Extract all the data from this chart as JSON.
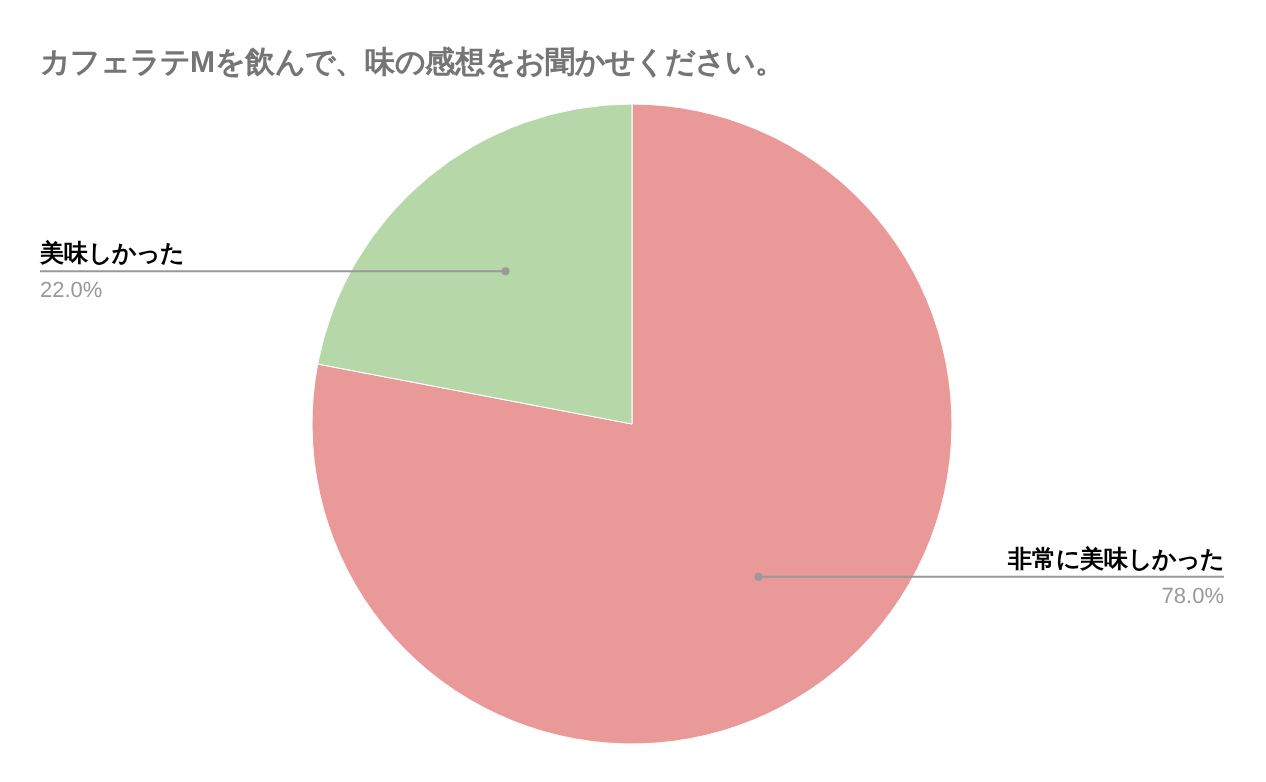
{
  "chart_data": {
    "type": "pie",
    "title": "カフェラテMを飲んで、味の感想をお聞かせください。",
    "categories": [
      "非常に美味しかった",
      "美味しかった"
    ],
    "values": [
      78.0,
      22.0
    ],
    "colors": [
      "#ea9999",
      "#b6d7a8"
    ],
    "value_labels": [
      "78.0%",
      "22.0%"
    ]
  }
}
